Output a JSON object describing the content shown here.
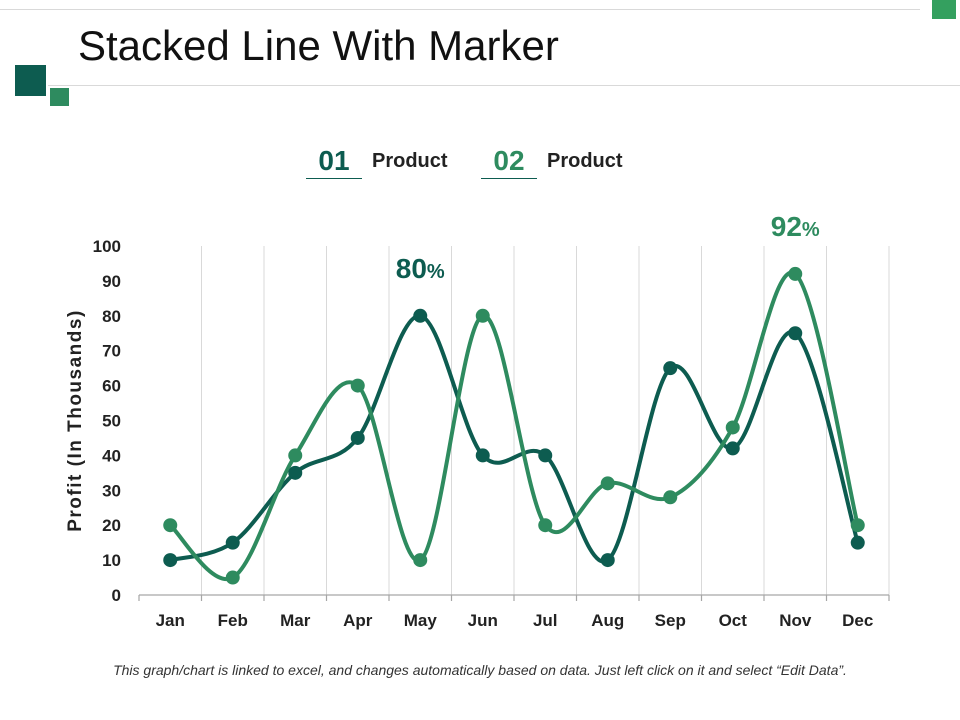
{
  "title": "Stacked Line With Marker",
  "colors": {
    "accent_dark": "#0d5c50",
    "accent_light": "#2e8b5f",
    "corner": "#34a05f"
  },
  "legend": [
    {
      "number": "01",
      "label": "Product"
    },
    {
      "number": "02",
      "label": "Product"
    }
  ],
  "callouts": [
    {
      "value": "80",
      "unit": "%",
      "series": 0,
      "category": "May"
    },
    {
      "value": "92",
      "unit": "%",
      "series": 1,
      "category": "Nov"
    }
  ],
  "footnote": "This graph/chart is linked to excel, and changes automatically based on data. Just left click on it and select “Edit Data”.",
  "chart_data": {
    "type": "line",
    "title": "",
    "xlabel": "",
    "ylabel": "Profit (In Thousands)",
    "ylim": [
      0,
      100
    ],
    "yticks": [
      0,
      10,
      20,
      30,
      40,
      50,
      60,
      70,
      80,
      90,
      100
    ],
    "categories": [
      "Jan",
      "Feb",
      "Mar",
      "Apr",
      "May",
      "Jun",
      "Jul",
      "Aug",
      "Sep",
      "Oct",
      "Nov",
      "Dec"
    ],
    "series": [
      {
        "name": "Product 01",
        "color": "#0d5c50",
        "values": [
          10,
          15,
          35,
          45,
          80,
          40,
          40,
          10,
          65,
          42,
          75,
          15
        ]
      },
      {
        "name": "Product 02",
        "color": "#2e8b5f",
        "values": [
          20,
          5,
          40,
          60,
          10,
          80,
          20,
          32,
          28,
          48,
          92,
          20
        ]
      }
    ],
    "grid": true,
    "legend": "top"
  }
}
